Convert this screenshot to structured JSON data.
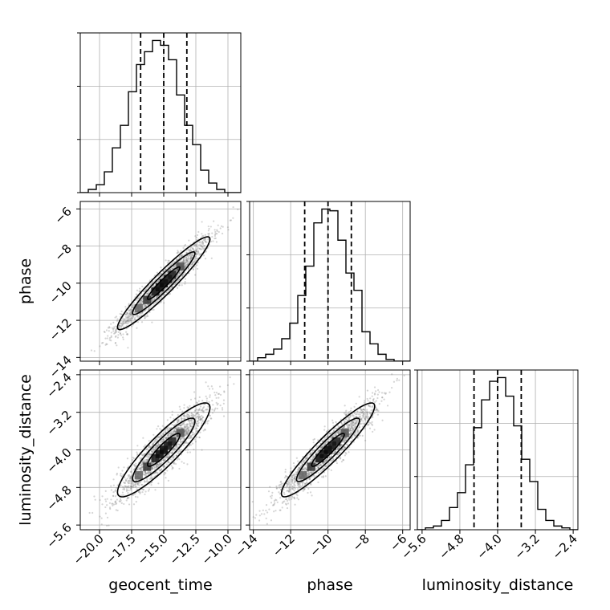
{
  "chart_data": {
    "type": "corner",
    "parameters": [
      {
        "key": "geocent_time",
        "label": "geocent_time",
        "range": [
          -21.5,
          -9.0
        ],
        "ticks": [
          -20.0,
          -17.5,
          -15.0,
          -12.5,
          -10.0
        ],
        "tick_labels": [
          "−20.0",
          "−17.5",
          "−15.0",
          "−12.5",
          "−10.0"
        ],
        "quantiles": [
          -16.8,
          -15.0,
          -13.2
        ]
      },
      {
        "key": "phase",
        "label": "phase",
        "range": [
          -14.2,
          -5.6
        ],
        "ticks": [
          -14,
          -12,
          -10,
          -8,
          -6
        ],
        "tick_labels": [
          "−14",
          "−12",
          "−10",
          "−8",
          "−6"
        ],
        "quantiles": [
          -11.25,
          -10.0,
          -8.75
        ]
      },
      {
        "key": "luminosity_distance",
        "label": "luminosity_distance",
        "range": [
          -5.7,
          -2.3
        ],
        "ticks": [
          -5.6,
          -4.8,
          -4.0,
          -3.2,
          -2.4
        ],
        "tick_labels": [
          "−5.6",
          "−4.8",
          "−4.0",
          "−3.2",
          "−2.4"
        ],
        "quantiles": [
          -4.5,
          -4.0,
          -3.5
        ]
      }
    ],
    "histograms": [
      {
        "param": "geocent_time",
        "bin_edges": [
          -21.5,
          -20.875,
          -20.25,
          -19.625,
          -19.0,
          -18.375,
          -17.75,
          -17.125,
          -16.5,
          -15.875,
          -15.25,
          -14.625,
          -14.0,
          -13.375,
          -12.75,
          -12.125,
          -11.5,
          -10.875,
          -10.25,
          -9.625,
          -9.0
        ],
        "counts": [
          0,
          2,
          5,
          13,
          28,
          42,
          63,
          80,
          88,
          95,
          92,
          83,
          61,
          42,
          30,
          14,
          6,
          2,
          0,
          0
        ]
      },
      {
        "param": "phase",
        "bin_edges": [
          -14.2,
          -13.77,
          -13.34,
          -12.91,
          -12.48,
          -12.05,
          -11.62,
          -11.19,
          -10.76,
          -10.33,
          -9.9,
          -9.47,
          -9.04,
          -8.61,
          -8.18,
          -7.75,
          -7.32,
          -6.89,
          -6.46,
          -6.03,
          -5.6
        ],
        "counts": [
          0,
          2,
          4,
          7,
          13,
          22,
          38,
          55,
          80,
          88,
          87,
          70,
          51,
          41,
          17,
          10,
          4,
          1,
          0,
          0
        ]
      },
      {
        "param": "luminosity_distance",
        "bin_edges": [
          -5.7,
          -5.53,
          -5.36,
          -5.19,
          -5.02,
          -4.85,
          -4.68,
          -4.51,
          -4.34,
          -4.17,
          -4.0,
          -3.83,
          -3.66,
          -3.49,
          -3.32,
          -3.15,
          -2.98,
          -2.81,
          -2.64,
          -2.47,
          -2.3
        ],
        "counts": [
          0,
          1,
          2,
          5,
          12,
          20,
          35,
          55,
          70,
          80,
          82,
          72,
          56,
          38,
          26,
          11,
          5,
          2,
          1,
          0
        ]
      }
    ],
    "pair_panels": [
      {
        "x": "geocent_time",
        "y": "phase",
        "correlation": 0.95
      },
      {
        "x": "geocent_time",
        "y": "luminosity_distance",
        "correlation": 0.9
      },
      {
        "x": "phase",
        "y": "luminosity_distance",
        "correlation": 0.93
      }
    ],
    "grid": true,
    "colors": {
      "line": "#000000",
      "points": "#888888",
      "grid": "#b0b0b0"
    }
  }
}
